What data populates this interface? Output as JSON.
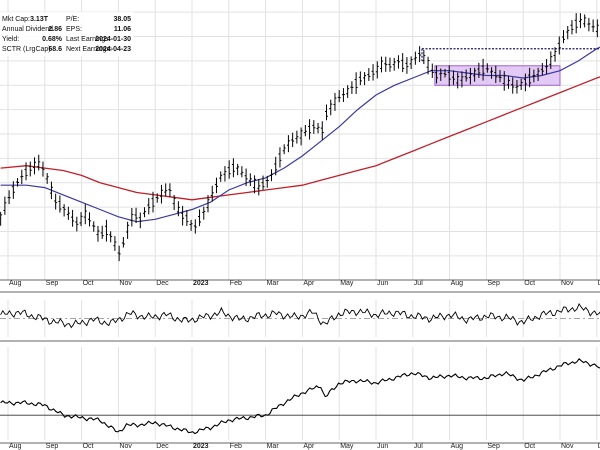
{
  "fundamentals": {
    "left": [
      {
        "label": "Mkt Cap:",
        "value": "3.13T"
      },
      {
        "label": "Annual Dividend",
        "value": "2.86"
      },
      {
        "label": "Yield:",
        "value": "0.68%"
      },
      {
        "label": "SCTR (LrgCap)",
        "value": "68.6"
      }
    ],
    "right": [
      {
        "label": "P/E:",
        "value": "38.05"
      },
      {
        "label": "EPS:",
        "value": "11.06"
      },
      {
        "label": "Last Earnings:",
        "value": "2024-01-30"
      },
      {
        "label": "Next Earnings:",
        "value": "2024-04-23"
      }
    ]
  },
  "chart_data": {
    "type": "line",
    "months": [
      {
        "label": "Aug",
        "bold": false,
        "t": 0.0
      },
      {
        "label": "Sep",
        "bold": false,
        "t": 1.0
      },
      {
        "label": "Oct",
        "bold": false,
        "t": 2.0
      },
      {
        "label": "Nov",
        "bold": false,
        "t": 3.0
      },
      {
        "label": "Dec",
        "bold": false,
        "t": 4.0
      },
      {
        "label": "2023",
        "bold": true,
        "t": 5.0
      },
      {
        "label": "Feb",
        "bold": false,
        "t": 6.0
      },
      {
        "label": "Mar",
        "bold": false,
        "t": 7.0
      },
      {
        "label": "Apr",
        "bold": false,
        "t": 8.0
      },
      {
        "label": "May",
        "bold": false,
        "t": 9.0
      },
      {
        "label": "Jun",
        "bold": false,
        "t": 10.0
      },
      {
        "label": "Jul",
        "bold": false,
        "t": 11.0
      },
      {
        "label": "Aug",
        "bold": false,
        "t": 12.0
      },
      {
        "label": "Sep",
        "bold": false,
        "t": 13.0
      },
      {
        "label": "Oct",
        "bold": false,
        "t": 14.0
      },
      {
        "label": "Nov",
        "bold": false,
        "t": 15.0
      },
      {
        "label": "Dec",
        "bold": false,
        "t": 16.0
      }
    ],
    "price": [
      [
        -0.2,
        212
      ],
      [
        0.0,
        226
      ],
      [
        0.2,
        238
      ],
      [
        0.4,
        246
      ],
      [
        0.6,
        252
      ],
      [
        0.8,
        256
      ],
      [
        1.0,
        250
      ],
      [
        1.15,
        236
      ],
      [
        1.3,
        224
      ],
      [
        1.5,
        220
      ],
      [
        1.7,
        212
      ],
      [
        1.9,
        206
      ],
      [
        2.1,
        214
      ],
      [
        2.3,
        206
      ],
      [
        2.5,
        196
      ],
      [
        2.7,
        202
      ],
      [
        2.9,
        190
      ],
      [
        3.05,
        180
      ],
      [
        3.2,
        198
      ],
      [
        3.4,
        214
      ],
      [
        3.6,
        210
      ],
      [
        3.8,
        220
      ],
      [
        4.0,
        226
      ],
      [
        4.2,
        232
      ],
      [
        4.4,
        234
      ],
      [
        4.55,
        222
      ],
      [
        4.7,
        214
      ],
      [
        4.9,
        210
      ],
      [
        5.05,
        202
      ],
      [
        5.2,
        210
      ],
      [
        5.4,
        220
      ],
      [
        5.6,
        234
      ],
      [
        5.8,
        246
      ],
      [
        6.0,
        250
      ],
      [
        6.2,
        254
      ],
      [
        6.4,
        246
      ],
      [
        6.6,
        242
      ],
      [
        6.8,
        236
      ],
      [
        7.0,
        240
      ],
      [
        7.2,
        248
      ],
      [
        7.4,
        262
      ],
      [
        7.6,
        272
      ],
      [
        7.8,
        276
      ],
      [
        8.0,
        280
      ],
      [
        8.2,
        284
      ],
      [
        8.4,
        288
      ],
      [
        8.5,
        276
      ],
      [
        8.6,
        294
      ],
      [
        8.8,
        304
      ],
      [
        9.0,
        310
      ],
      [
        9.2,
        314
      ],
      [
        9.4,
        320
      ],
      [
        9.6,
        326
      ],
      [
        9.8,
        328
      ],
      [
        10.0,
        332
      ],
      [
        10.2,
        338
      ],
      [
        10.4,
        336
      ],
      [
        10.6,
        340
      ],
      [
        10.8,
        336
      ],
      [
        11.0,
        340
      ],
      [
        11.2,
        346
      ],
      [
        11.4,
        338
      ],
      [
        11.6,
        328
      ],
      [
        11.8,
        330
      ],
      [
        12.0,
        328
      ],
      [
        12.2,
        324
      ],
      [
        12.4,
        326
      ],
      [
        12.6,
        328
      ],
      [
        12.8,
        332
      ],
      [
        13.0,
        334
      ],
      [
        13.2,
        330
      ],
      [
        13.4,
        326
      ],
      [
        13.6,
        322
      ],
      [
        13.8,
        318
      ],
      [
        14.0,
        322
      ],
      [
        14.2,
        326
      ],
      [
        14.4,
        330
      ],
      [
        14.6,
        334
      ],
      [
        14.8,
        342
      ],
      [
        15.0,
        354
      ],
      [
        15.2,
        364
      ],
      [
        15.4,
        370
      ],
      [
        15.6,
        374
      ],
      [
        15.8,
        370
      ],
      [
        16.0,
        366
      ],
      [
        16.2,
        372
      ],
      [
        16.4,
        374
      ]
    ],
    "ma50": [
      [
        -0.2,
        238
      ],
      [
        0.5,
        238
      ],
      [
        1.0,
        236
      ],
      [
        1.5,
        230
      ],
      [
        2.0,
        224
      ],
      [
        2.5,
        218
      ],
      [
        3.0,
        212
      ],
      [
        3.5,
        208
      ],
      [
        4.0,
        210
      ],
      [
        4.5,
        214
      ],
      [
        5.0,
        218
      ],
      [
        5.5,
        224
      ],
      [
        6.0,
        234
      ],
      [
        6.5,
        240
      ],
      [
        7.0,
        244
      ],
      [
        7.5,
        252
      ],
      [
        8.0,
        262
      ],
      [
        8.5,
        274
      ],
      [
        9.0,
        286
      ],
      [
        9.5,
        300
      ],
      [
        10.0,
        312
      ],
      [
        10.5,
        320
      ],
      [
        11.0,
        326
      ],
      [
        11.5,
        332
      ],
      [
        12.0,
        332
      ],
      [
        12.5,
        330
      ],
      [
        13.0,
        328
      ],
      [
        13.5,
        328
      ],
      [
        14.0,
        326
      ],
      [
        14.5,
        328
      ],
      [
        15.0,
        332
      ],
      [
        15.5,
        340
      ],
      [
        16.0,
        350
      ],
      [
        16.4,
        356
      ]
    ],
    "ma200": [
      [
        -0.2,
        252
      ],
      [
        0.5,
        254
      ],
      [
        1.0,
        252
      ],
      [
        1.5,
        250
      ],
      [
        2.0,
        246
      ],
      [
        2.5,
        240
      ],
      [
        3.0,
        236
      ],
      [
        3.5,
        232
      ],
      [
        4.0,
        230
      ],
      [
        4.5,
        228
      ],
      [
        5.0,
        226
      ],
      [
        5.5,
        228
      ],
      [
        6.0,
        230
      ],
      [
        6.5,
        232
      ],
      [
        7.0,
        234
      ],
      [
        7.5,
        236
      ],
      [
        8.0,
        238
      ],
      [
        8.5,
        242
      ],
      [
        9.0,
        246
      ],
      [
        9.5,
        250
      ],
      [
        10.0,
        254
      ],
      [
        10.5,
        260
      ],
      [
        11.0,
        266
      ],
      [
        11.5,
        272
      ],
      [
        12.0,
        278
      ],
      [
        12.5,
        284
      ],
      [
        13.0,
        290
      ],
      [
        13.5,
        296
      ],
      [
        14.0,
        302
      ],
      [
        14.5,
        308
      ],
      [
        15.0,
        314
      ],
      [
        15.5,
        320
      ],
      [
        16.0,
        326
      ],
      [
        16.4,
        330
      ]
    ],
    "resistance": {
      "y": 350,
      "t_start": 11.25,
      "t_end": 16.4
    },
    "range_box": {
      "t_start": 11.6,
      "t_end": 15.0,
      "y_low": 320,
      "y_high": 336
    },
    "oscillator": [
      [
        -0.2,
        56
      ],
      [
        0.3,
        60
      ],
      [
        0.8,
        52
      ],
      [
        1.3,
        44
      ],
      [
        1.8,
        40
      ],
      [
        2.3,
        48
      ],
      [
        2.8,
        42
      ],
      [
        3.3,
        58
      ],
      [
        3.8,
        52
      ],
      [
        4.3,
        56
      ],
      [
        4.8,
        46
      ],
      [
        5.3,
        52
      ],
      [
        5.8,
        60
      ],
      [
        6.3,
        48
      ],
      [
        6.8,
        54
      ],
      [
        7.3,
        58
      ],
      [
        7.8,
        52
      ],
      [
        8.3,
        60
      ],
      [
        8.6,
        40
      ],
      [
        9.0,
        58
      ],
      [
        9.5,
        62
      ],
      [
        10.0,
        56
      ],
      [
        10.5,
        60
      ],
      [
        11.0,
        54
      ],
      [
        11.5,
        50
      ],
      [
        12.0,
        56
      ],
      [
        12.5,
        48
      ],
      [
        13.0,
        54
      ],
      [
        13.5,
        52
      ],
      [
        14.0,
        44
      ],
      [
        14.5,
        56
      ],
      [
        15.0,
        62
      ],
      [
        15.5,
        68
      ],
      [
        16.0,
        58
      ],
      [
        16.4,
        52
      ]
    ],
    "relative_strength": [
      [
        -0.2,
        1.1
      ],
      [
        0.5,
        1.1
      ],
      [
        1.0,
        1.08
      ],
      [
        1.5,
        1.0
      ],
      [
        2.0,
        0.98
      ],
      [
        2.5,
        0.96
      ],
      [
        3.0,
        0.86
      ],
      [
        3.2,
        0.92
      ],
      [
        3.5,
        0.92
      ],
      [
        4.0,
        0.94
      ],
      [
        4.5,
        0.9
      ],
      [
        5.0,
        0.86
      ],
      [
        5.5,
        0.9
      ],
      [
        6.0,
        0.96
      ],
      [
        6.5,
        0.98
      ],
      [
        7.0,
        1.0
      ],
      [
        7.5,
        1.1
      ],
      [
        8.0,
        1.18
      ],
      [
        8.5,
        1.24
      ],
      [
        8.6,
        1.14
      ],
      [
        9.0,
        1.26
      ],
      [
        9.5,
        1.28
      ],
      [
        10.0,
        1.26
      ],
      [
        10.5,
        1.3
      ],
      [
        11.0,
        1.34
      ],
      [
        11.5,
        1.3
      ],
      [
        12.0,
        1.32
      ],
      [
        12.5,
        1.3
      ],
      [
        13.0,
        1.3
      ],
      [
        13.5,
        1.34
      ],
      [
        14.0,
        1.28
      ],
      [
        14.5,
        1.34
      ],
      [
        15.0,
        1.4
      ],
      [
        15.5,
        1.44
      ],
      [
        16.0,
        1.4
      ],
      [
        16.3,
        1.3
      ],
      [
        16.4,
        1.24
      ]
    ],
    "panels": {
      "price_y_range": [
        170,
        390
      ],
      "oscillator_y_range": [
        20,
        80
      ],
      "oscillator_midline": 50,
      "rs_y_range": [
        0.8,
        1.55
      ],
      "rs_baseline": 1.0
    },
    "colors": {
      "price": "#000000",
      "ma50": "#3a3aa0",
      "ma200": "#c0202a",
      "range_box_fill": "#d9b8f0",
      "range_box_stroke": "#a060d0",
      "resistance": "#1a1a6e",
      "grid": "#e2e2e2",
      "panel_border": "#666666"
    },
    "grid": true
  }
}
